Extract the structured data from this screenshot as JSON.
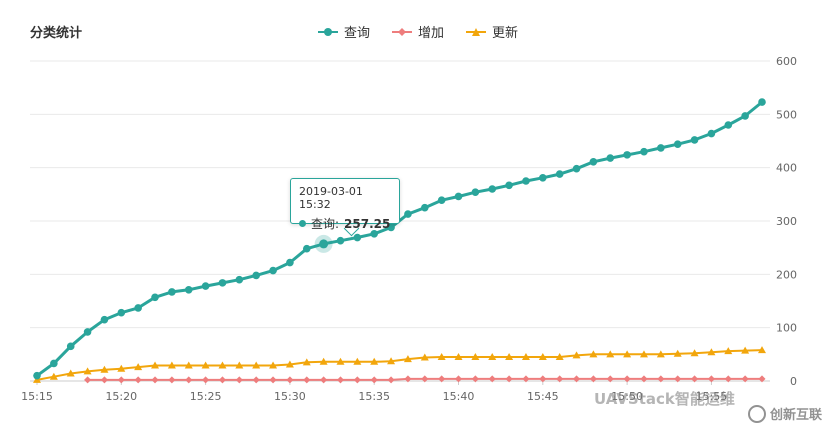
{
  "header": {
    "title": "分类统计"
  },
  "colors": {
    "query": "#2aa59b",
    "add": "#ee7d7d",
    "update": "#f2a60c",
    "grid": "#e9e9e9",
    "axis_text": "#666666"
  },
  "legend": [
    {
      "label": "查询",
      "icon": "circle-marker-icon"
    },
    {
      "label": "增加",
      "icon": "diamond-marker-icon"
    },
    {
      "label": "更新",
      "icon": "triangle-marker-icon"
    }
  ],
  "tooltip": {
    "time": "2019-03-01 15:32",
    "series": "查询:",
    "value": "257.25"
  },
  "watermark": {
    "text": "UAVStack智能运维",
    "brand": "创新互联"
  },
  "chart_data": {
    "type": "line",
    "title": "分类统计",
    "x_ticks": [
      "15:15",
      "15:20",
      "15:25",
      "15:30",
      "15:35",
      "15:40",
      "15:45",
      "15:50",
      "15:55"
    ],
    "y_ticks": [
      "0",
      "100",
      "200",
      "300",
      "400",
      "500",
      "600"
    ],
    "ylim": [
      0,
      600
    ],
    "y_axis_side": "right",
    "grid": true,
    "legend_position": "top-center",
    "x": [
      "15:15",
      "15:16",
      "15:17",
      "15:18",
      "15:19",
      "15:20",
      "15:21",
      "15:22",
      "15:23",
      "15:24",
      "15:25",
      "15:26",
      "15:27",
      "15:28",
      "15:29",
      "15:30",
      "15:31",
      "15:32",
      "15:33",
      "15:34",
      "15:35",
      "15:36",
      "15:37",
      "15:38",
      "15:39",
      "15:40",
      "15:41",
      "15:42",
      "15:43",
      "15:44",
      "15:45",
      "15:46",
      "15:47",
      "15:48",
      "15:49",
      "15:50",
      "15:51",
      "15:52",
      "15:53",
      "15:54",
      "15:55",
      "15:56",
      "15:57",
      "15:58"
    ],
    "series": [
      {
        "name": "查询",
        "values": [
          10,
          33,
          65,
          92,
          115,
          128,
          137,
          157,
          167,
          171,
          178,
          184,
          190,
          198,
          207,
          222,
          248,
          257,
          263,
          269,
          276,
          288,
          313,
          325,
          339,
          346,
          354,
          360,
          367,
          375,
          381,
          388,
          398,
          411,
          418,
          424,
          430,
          437,
          444,
          452,
          464,
          480,
          497,
          523
        ]
      },
      {
        "name": "增加",
        "values": [
          null,
          null,
          null,
          2,
          2,
          2,
          2,
          2,
          2,
          2,
          2,
          2,
          2,
          2,
          2,
          2,
          2,
          2,
          2,
          2,
          2,
          2,
          4,
          4,
          4,
          4,
          4,
          4,
          4,
          4,
          4,
          4,
          4,
          4,
          4,
          4,
          4,
          4,
          4,
          4,
          4,
          4,
          4,
          4
        ]
      },
      {
        "name": "更新",
        "values": [
          2,
          8,
          14,
          18,
          21,
          23,
          26,
          29,
          29,
          29,
          29,
          29,
          29,
          29,
          29,
          31,
          35,
          36,
          36,
          36,
          36,
          37,
          41,
          44,
          45,
          45,
          45,
          45,
          45,
          45,
          45,
          45,
          48,
          50,
          50,
          50,
          50,
          50,
          51,
          52,
          54,
          56,
          57,
          58
        ]
      }
    ]
  }
}
